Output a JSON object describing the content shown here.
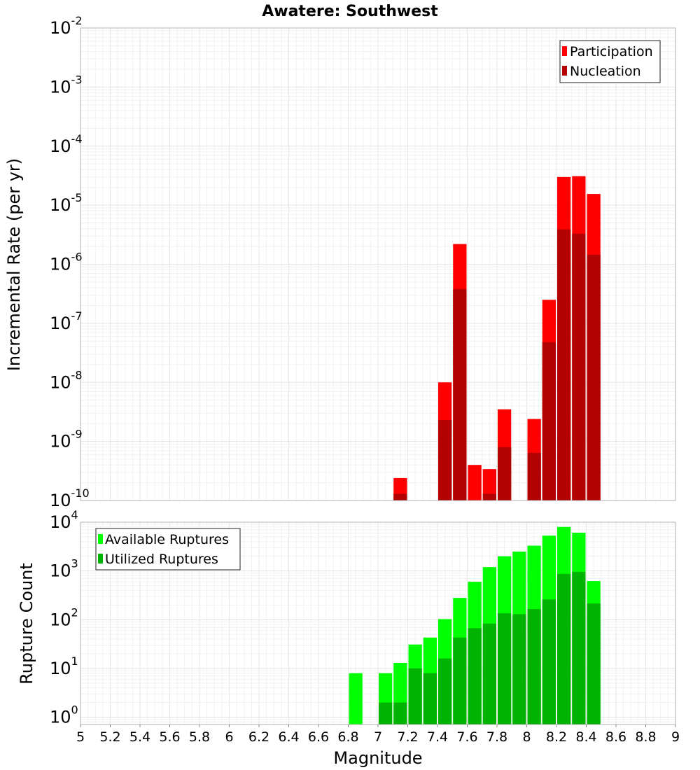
{
  "chart_data": [
    {
      "type": "bar",
      "title": "Awatere: Southwest",
      "xlabel": "",
      "ylabel": "Incremental Rate (per yr)",
      "yscale": "log",
      "ylim_exponents": [
        -10,
        -2
      ],
      "ytick_labels": [
        {
          "base": "10",
          "exp": "-2"
        },
        {
          "base": "10",
          "exp": "-3"
        },
        {
          "base": "10",
          "exp": "-4"
        },
        {
          "base": "10",
          "exp": "-5"
        },
        {
          "base": "10",
          "exp": "-6"
        },
        {
          "base": "10",
          "exp": "-7"
        },
        {
          "base": "10",
          "exp": "-8"
        },
        {
          "base": "10",
          "exp": "-9"
        },
        {
          "base": "10",
          "exp": "-10"
        }
      ],
      "xlim": [
        5,
        9
      ],
      "bar_width": 0.1,
      "grid": true,
      "legend_position": "top-right",
      "series": [
        {
          "name": "Participation",
          "color": "#ff0000",
          "x": [
            7.15,
            7.45,
            7.55,
            7.65,
            7.75,
            7.85,
            8.05,
            8.15,
            8.25,
            8.35,
            8.45
          ],
          "values": [
            2.4e-10,
            1e-08,
            2.2e-06,
            4e-10,
            3.4e-10,
            3.5e-09,
            2.4e-09,
            2.5e-07,
            3e-05,
            3.1e-05,
            1.55e-05
          ]
        },
        {
          "name": "Nucleation",
          "color": "#b30000",
          "x": [
            7.15,
            7.45,
            7.55,
            7.75,
            7.85,
            8.05,
            8.15,
            8.25,
            8.35,
            8.45
          ],
          "values": [
            1.3e-10,
            2.3e-09,
            3.8e-07,
            1.3e-10,
            8e-10,
            6.4e-10,
            4.8e-08,
            3.9e-06,
            3.3e-06,
            1.45e-06
          ]
        }
      ]
    },
    {
      "type": "bar",
      "xlabel": "Magnitude",
      "ylabel": "Rupture Count",
      "yscale": "log",
      "ylim_exponents": [
        -0.15,
        4
      ],
      "ytick_labels": [
        {
          "base": "10",
          "exp": "4"
        },
        {
          "base": "10",
          "exp": "3"
        },
        {
          "base": "10",
          "exp": "2"
        },
        {
          "base": "10",
          "exp": "1"
        },
        {
          "base": "10",
          "exp": "0"
        }
      ],
      "xlim": [
        5,
        9
      ],
      "xtick_labels": [
        "5",
        "5.2",
        "5.4",
        "5.6",
        "5.8",
        "6",
        "6.2",
        "6.4",
        "6.6",
        "6.8",
        "7",
        "7.2",
        "7.4",
        "7.6",
        "7.8",
        "8",
        "8.2",
        "8.4",
        "8.6",
        "8.8",
        "9"
      ],
      "bar_width": 0.1,
      "grid": true,
      "legend_position": "top-left",
      "series": [
        {
          "name": "Available Ruptures",
          "color": "#00ff00",
          "x": [
            6.85,
            7.05,
            7.15,
            7.25,
            7.35,
            7.45,
            7.55,
            7.65,
            7.75,
            7.85,
            7.95,
            8.05,
            8.15,
            8.25,
            8.35,
            8.45
          ],
          "values": [
            8,
            8,
            13,
            31,
            43,
            103,
            280,
            600,
            1200,
            2000,
            2500,
            3300,
            5300,
            8000,
            6100,
            620
          ]
        },
        {
          "name": "Utilized Ruptures",
          "color": "#00b300",
          "x": [
            7.05,
            7.15,
            7.25,
            7.35,
            7.45,
            7.55,
            7.65,
            7.75,
            7.85,
            7.95,
            8.05,
            8.15,
            8.25,
            8.35,
            8.45
          ],
          "values": [
            2,
            2,
            10,
            8,
            16,
            43,
            67,
            83,
            135,
            130,
            165,
            260,
            870,
            960,
            215
          ]
        }
      ]
    }
  ]
}
